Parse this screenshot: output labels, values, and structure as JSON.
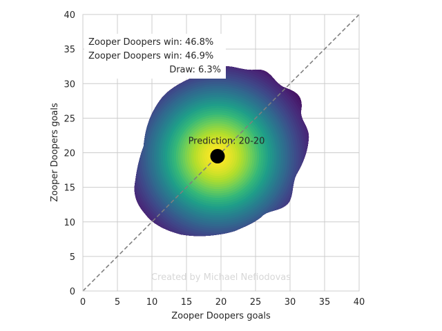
{
  "chart_data": {
    "type": "heatmap",
    "title": "",
    "xlabel": "Zooper Doopers goals",
    "ylabel": "Zooper Doopers goals",
    "xlim": [
      0,
      40
    ],
    "ylim": [
      0,
      40
    ],
    "x_ticks": [
      0,
      5,
      10,
      15,
      20,
      25,
      30,
      35,
      40
    ],
    "y_ticks": [
      0,
      5,
      10,
      15,
      20,
      25,
      30,
      35,
      40
    ],
    "grid": true,
    "colormap": "viridis",
    "density_peak": [
      19.5,
      19.5
    ],
    "density_spread": [
      7.5,
      7.5
    ],
    "density_cutoff": 0.1,
    "diagonal_line": {
      "from": [
        0,
        0
      ],
      "to": [
        40,
        40
      ],
      "style": "dashed",
      "color": "#7f7f7f"
    },
    "prediction_point": {
      "x": 19.5,
      "y": 19.5,
      "label": "Prediction: 20-20"
    },
    "probability_box": [
      "Zooper Doopers win: 46.8%",
      "Zooper Doopers win: 46.9%",
      "Draw: 6.3%"
    ],
    "watermark": "Created by Michael Nefiodovas"
  },
  "colors": {
    "grid": "#cccccc",
    "axes_edge": "#cccccc",
    "diagonal": "#7f7f7f",
    "point": "#000000",
    "watermark": "#d7d7d7"
  }
}
